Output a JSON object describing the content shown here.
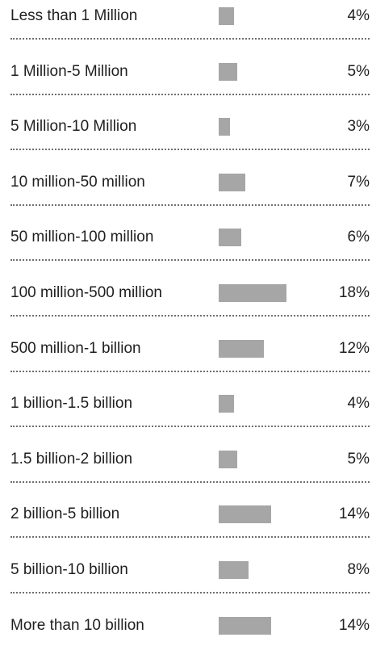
{
  "colors": {
    "bar": "#a6a6a6",
    "text": "#1f1f1f",
    "divider": "#6f6f6f"
  },
  "chart_data": {
    "type": "bar",
    "orientation": "horizontal",
    "categories": [
      "Less than 1 Million",
      "1 Million-5 Million",
      "5 Million-10 Million",
      "10 million-50 million",
      "50 million-100 million",
      "100 million-500 million",
      "500 million-1 billion",
      "1 billion-1.5 billion",
      "1.5 billion-2 billion",
      "2 billion-5 billion",
      "5 billion-10 billion",
      "More than 10 billion"
    ],
    "values": [
      4,
      5,
      3,
      7,
      6,
      18,
      12,
      4,
      5,
      14,
      8,
      14
    ],
    "value_labels": [
      "4%",
      "5%",
      "3%",
      "7%",
      "6%",
      "18%",
      "12%",
      "4%",
      "5%",
      "14%",
      "8%",
      "14%"
    ],
    "unit": "%",
    "title": "",
    "xlabel": "",
    "ylabel": "",
    "xlim": [
      0,
      18
    ],
    "grid": false,
    "legend": "none"
  }
}
